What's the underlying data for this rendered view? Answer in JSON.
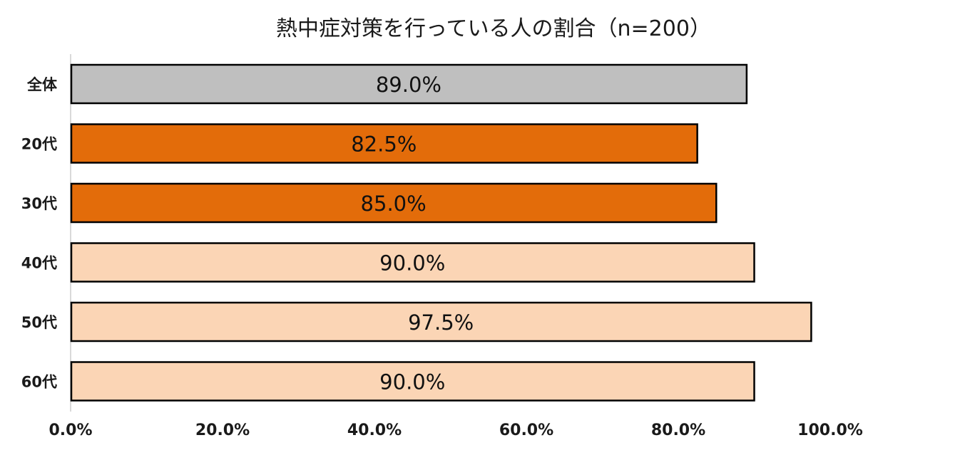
{
  "chart_data": {
    "type": "bar",
    "orientation": "horizontal",
    "title": "熱中症対策を行っている人の割合（n=200）",
    "categories": [
      "全体",
      "20代",
      "30代",
      "40代",
      "50代",
      "60代"
    ],
    "values": [
      89.0,
      82.5,
      85.0,
      90.0,
      97.5,
      90.0
    ],
    "value_labels": [
      "89.0%",
      "82.5%",
      "85.0%",
      "90.0%",
      "97.5%",
      "90.0%"
    ],
    "bar_colors": [
      "#bfbfbf",
      "#e36c0a",
      "#e36c0a",
      "#fbd5b5",
      "#fbd5b5",
      "#fbd5b5"
    ],
    "xlim": [
      0,
      100
    ],
    "x_ticks": [
      0,
      20,
      40,
      60,
      80,
      100
    ],
    "x_tick_labels": [
      "0.0%",
      "20.0%",
      "40.0%",
      "60.0%",
      "80.0%",
      "100.0%"
    ],
    "xlabel": "",
    "ylabel": "",
    "grid": false,
    "legend": "none",
    "axis_color": "#d9d9d9",
    "bar_border_color": "#000000"
  }
}
